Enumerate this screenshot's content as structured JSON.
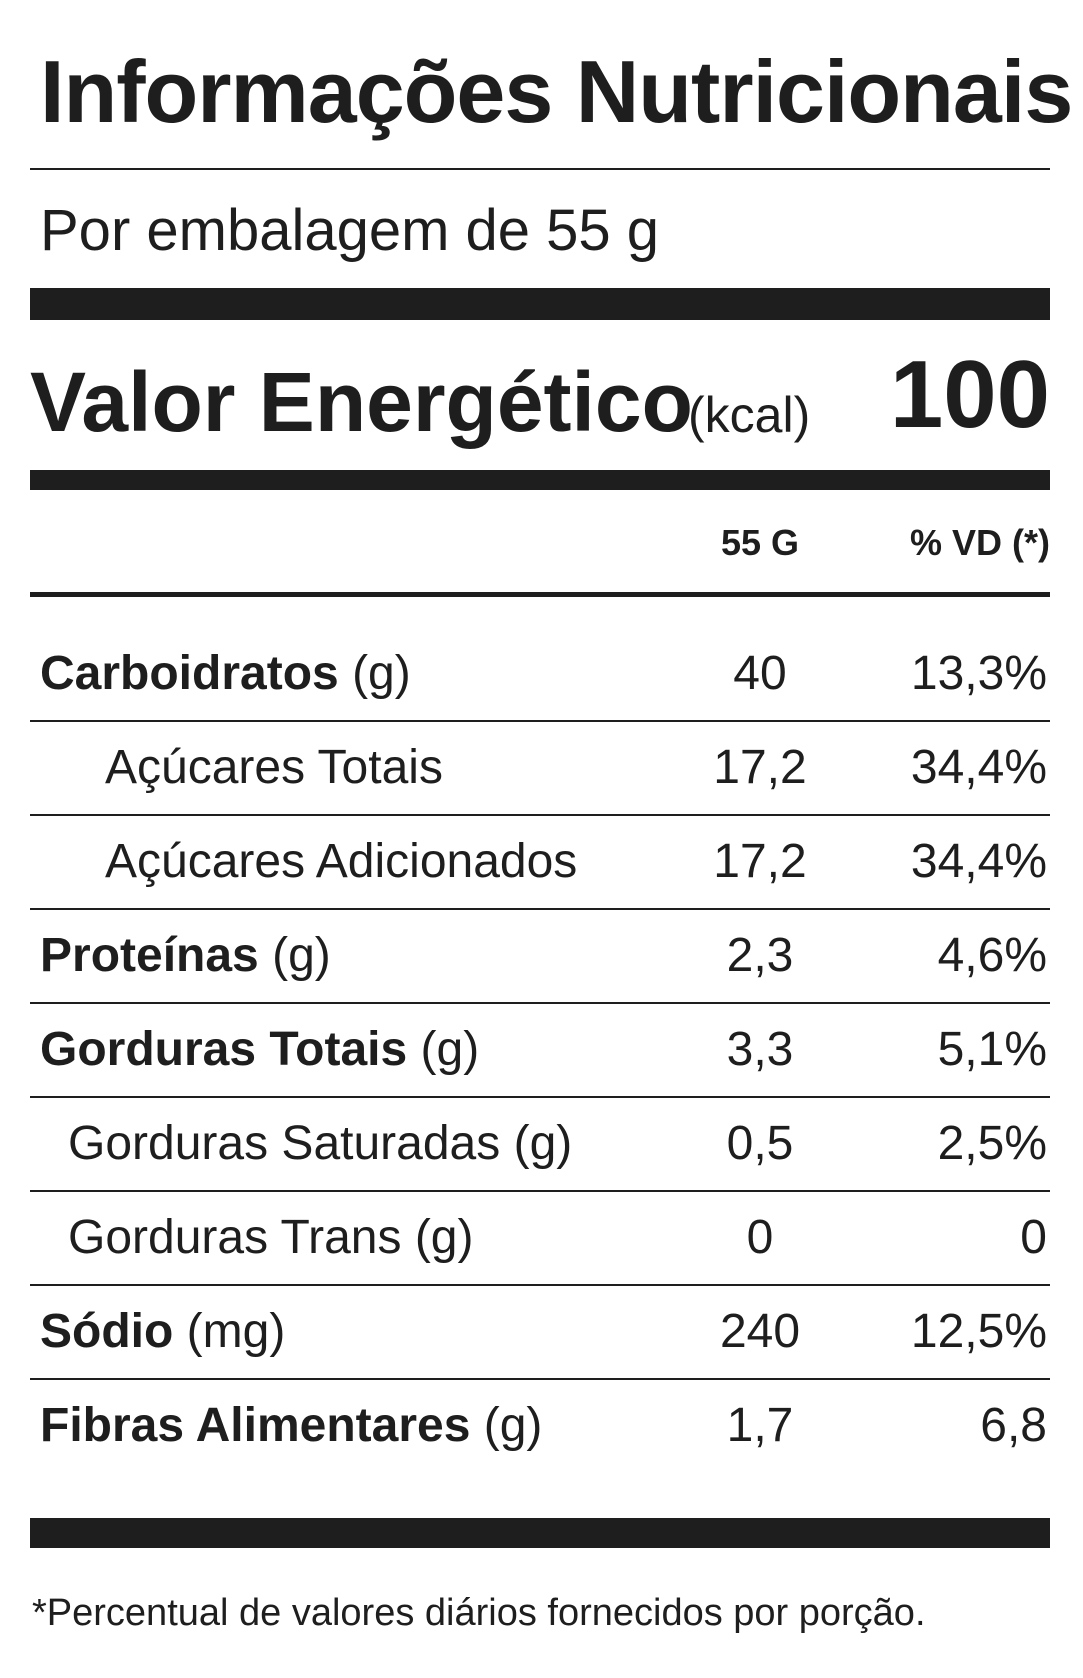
{
  "title": "Informações Nutricionais",
  "serving": "Por embalagem de 55 g",
  "energy": {
    "label": "Valor Energético",
    "unit": "(kcal)",
    "value": "100"
  },
  "columns": {
    "amount": "55 G",
    "dv": "% VD (*)"
  },
  "rows": [
    {
      "name": "Carboidratos",
      "unit": "(g)",
      "amount": "40",
      "dv": "13,3%"
    },
    {
      "name": "Açúcares Totais",
      "unit": "",
      "amount": "17,2",
      "dv": "34,4%"
    },
    {
      "name": "Açúcares Adicionados",
      "unit": "",
      "amount": "17,2",
      "dv": "34,4%"
    },
    {
      "name": "Proteínas",
      "unit": "(g)",
      "amount": "2,3",
      "dv": "4,6%"
    },
    {
      "name": "Gorduras Totais",
      "unit": "(g)",
      "amount": "3,3",
      "dv": "5,1%"
    },
    {
      "name": "Gorduras Saturadas",
      "unit": "(g)",
      "amount": "0,5",
      "dv": "2,5%"
    },
    {
      "name": "Gorduras Trans",
      "unit": "(g)",
      "amount": "0",
      "dv": "0"
    },
    {
      "name": "Sódio",
      "unit": "(mg)",
      "amount": "240",
      "dv": "12,5%"
    },
    {
      "name": "Fibras Alimentares",
      "unit": "(g)",
      "amount": "1,7",
      "dv": "6,8"
    }
  ],
  "footnote": "*Percentual de valores diários fornecidos por porção."
}
